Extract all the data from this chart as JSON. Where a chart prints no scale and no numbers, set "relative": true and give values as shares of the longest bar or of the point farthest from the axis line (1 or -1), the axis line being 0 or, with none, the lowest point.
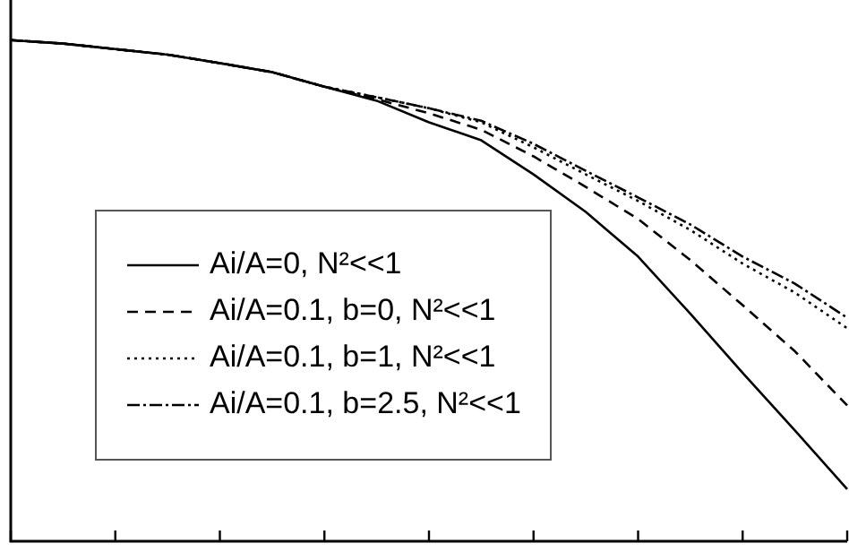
{
  "chart_data": {
    "type": "line",
    "relative": true,
    "legend": "left",
    "marker": "none",
    "grid": false,
    "categories": [
      null,
      null,
      null,
      null,
      null,
      null,
      null,
      null,
      null,
      null,
      null,
      null,
      null,
      null,
      null,
      null,
      null
    ],
    "series": [
      {
        "name": "Ai/A=0, N²<<1",
        "color": "#000000",
        "line_style": "solid",
        "values": [
          1,
          0.993,
          0.982,
          0.971,
          0.954,
          0.936,
          0.907,
          0.879,
          0.836,
          0.8,
          0.732,
          0.657,
          0.568,
          0.454,
          0.336,
          0.221,
          0.104
        ]
      },
      {
        "name": "Ai/A=0.1, b=0, N²<<1",
        "color": "#000000",
        "line_style": "dashed",
        "values": [
          1,
          0.993,
          0.982,
          0.971,
          0.954,
          0.936,
          0.907,
          0.882,
          0.854,
          0.821,
          0.768,
          0.707,
          0.643,
          0.561,
          0.471,
          0.379,
          0.271
        ]
      },
      {
        "name": "Ai/A=0.1, b=1, N²<<1",
        "color": "#000000",
        "line_style": "dotted",
        "values": [
          1,
          0.993,
          0.982,
          0.971,
          0.954,
          0.936,
          0.907,
          0.886,
          0.864,
          0.836,
          0.786,
          0.732,
          0.679,
          0.621,
          0.554,
          0.496,
          0.425
        ]
      },
      {
        "name": "Ai/A=0.1, b=2.5, N²<<1",
        "color": "#000000",
        "line_style": "dashdot",
        "values": [
          1,
          0.993,
          0.982,
          0.971,
          0.954,
          0.936,
          0.907,
          0.886,
          0.864,
          0.839,
          0.793,
          0.739,
          0.686,
          0.632,
          0.568,
          0.514,
          0.446
        ]
      }
    ]
  }
}
